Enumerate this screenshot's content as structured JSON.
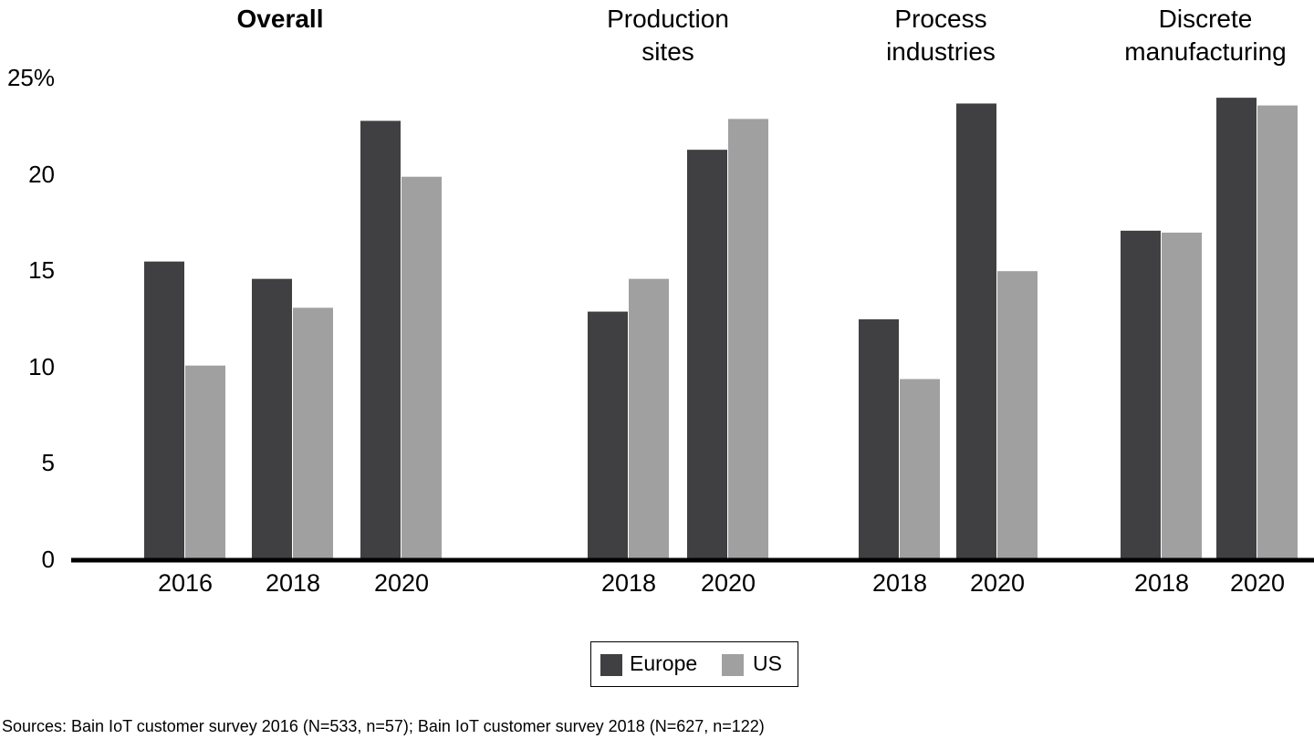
{
  "chart_data": {
    "type": "bar",
    "ylabel": "",
    "yticks": [
      "25%",
      "20",
      "15",
      "10",
      "5",
      "0"
    ],
    "ylim": [
      0,
      25
    ],
    "groups": [
      {
        "title": "Overall",
        "bold": true,
        "categories": [
          "2016",
          "2018",
          "2020"
        ],
        "series": [
          {
            "name": "Europe",
            "values": [
              15.5,
              14.6,
              22.8
            ]
          },
          {
            "name": "US",
            "values": [
              10.1,
              13.1,
              19.9
            ]
          }
        ]
      },
      {
        "title": "Production\nsites",
        "bold": false,
        "categories": [
          "2018",
          "2020"
        ],
        "series": [
          {
            "name": "Europe",
            "values": [
              12.9,
              21.3
            ]
          },
          {
            "name": "US",
            "values": [
              14.6,
              22.9
            ]
          }
        ]
      },
      {
        "title": "Process\nindustries",
        "bold": false,
        "categories": [
          "2018",
          "2020"
        ],
        "series": [
          {
            "name": "Europe",
            "values": [
              12.5,
              23.7
            ]
          },
          {
            "name": "US",
            "values": [
              9.4,
              15.0
            ]
          }
        ]
      },
      {
        "title": "Discrete\nmanufacturing",
        "bold": false,
        "categories": [
          "2018",
          "2020"
        ],
        "series": [
          {
            "name": "Europe",
            "values": [
              17.1,
              24.0
            ]
          },
          {
            "name": "US",
            "values": [
              17.0,
              23.6
            ]
          }
        ]
      }
    ],
    "legend": {
      "position": "bottom-center",
      "items": [
        "Europe",
        "US"
      ]
    },
    "colors": {
      "Europe": "#404042",
      "US": "#a0a0a0",
      "axis": "#000000"
    }
  },
  "source": "Sources: Bain IoT customer survey 2016 (N=533, n=57); Bain IoT customer survey 2018 (N=627, n=122)"
}
